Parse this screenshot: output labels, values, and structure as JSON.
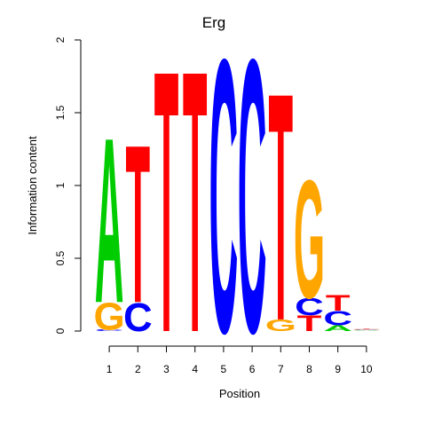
{
  "chart_data": {
    "type": "sequence-logo",
    "title": "Erg",
    "xlabel": "Position",
    "ylabel": "Information content",
    "ylim": [
      0,
      2
    ],
    "yticks": [
      "0",
      "0.5",
      "1",
      "1.5",
      "2"
    ],
    "x": [
      "1",
      "2",
      "3",
      "4",
      "5",
      "6",
      "7",
      "8",
      "9",
      "10"
    ],
    "colors": {
      "A": "#00cc00",
      "C": "#0000ff",
      "G": "#ffa500",
      "T": "#ff0000"
    },
    "positions": [
      {
        "position": "1",
        "letters": [
          {
            "base": "C",
            "height": 0.01
          },
          {
            "base": "G",
            "height": 0.19
          },
          {
            "base": "A",
            "height": 1.16
          }
        ]
      },
      {
        "position": "2",
        "letters": [
          {
            "base": "C",
            "height": 0.2
          },
          {
            "base": "T",
            "height": 1.11
          }
        ]
      },
      {
        "position": "3",
        "letters": [
          {
            "base": "T",
            "height": 1.84
          }
        ]
      },
      {
        "position": "4",
        "letters": [
          {
            "base": "T",
            "height": 1.84
          }
        ]
      },
      {
        "position": "5",
        "letters": [
          {
            "base": "C",
            "height": 1.92
          }
        ]
      },
      {
        "position": "6",
        "letters": [
          {
            "base": "C",
            "height": 1.92
          }
        ]
      },
      {
        "position": "7",
        "letters": [
          {
            "base": "G",
            "height": 0.08
          },
          {
            "base": "T",
            "height": 1.6
          }
        ]
      },
      {
        "position": "8",
        "letters": [
          {
            "base": "T",
            "height": 0.11
          },
          {
            "base": "C",
            "height": 0.12
          },
          {
            "base": "G",
            "height": 0.83
          }
        ]
      },
      {
        "position": "9",
        "letters": [
          {
            "base": "A",
            "height": 0.04
          },
          {
            "base": "C",
            "height": 0.1
          },
          {
            "base": "T",
            "height": 0.11
          }
        ]
      },
      {
        "position": "10",
        "letters": [
          {
            "base": "A",
            "height": 0.005
          },
          {
            "base": "C",
            "height": 0.005
          },
          {
            "base": "G",
            "height": 0.005
          },
          {
            "base": "T",
            "height": 0.005
          }
        ]
      }
    ]
  }
}
